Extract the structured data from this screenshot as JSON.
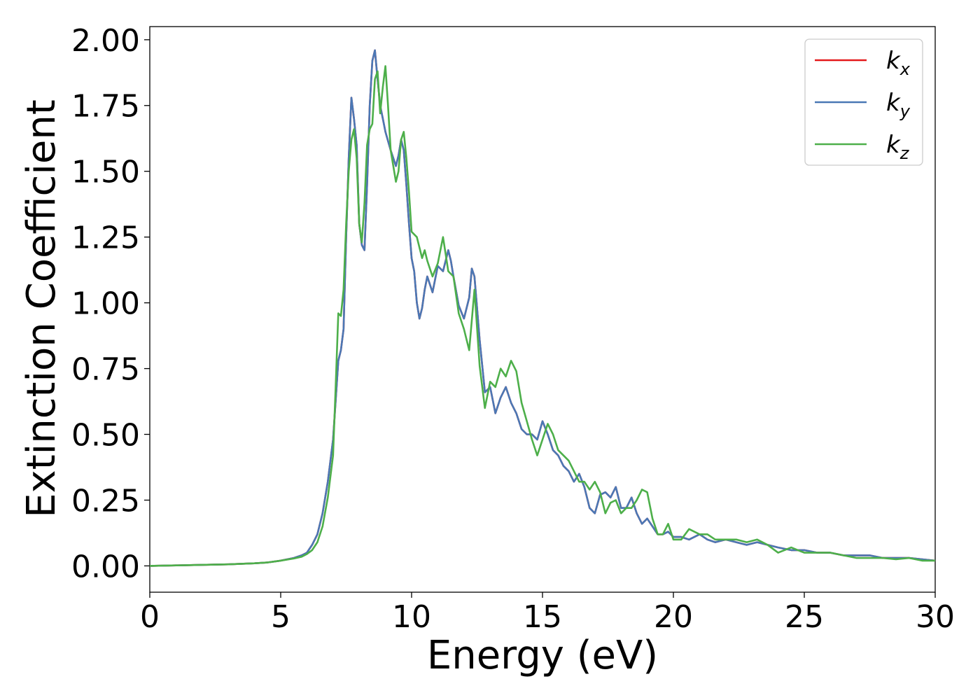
{
  "chart_data": {
    "type": "line",
    "title": "",
    "xlabel": "Energy (eV)",
    "ylabel": "Extinction Coefficient",
    "xlim": [
      0,
      30
    ],
    "ylim": [
      -0.1,
      2.05
    ],
    "xticks": [
      0,
      5,
      10,
      15,
      20,
      25,
      30
    ],
    "xtick_labels": [
      "0",
      "5",
      "10",
      "15",
      "20",
      "25",
      "30"
    ],
    "yticks": [
      0,
      0.25,
      0.5,
      0.75,
      1.0,
      1.25,
      1.5,
      1.75,
      2.0
    ],
    "ytick_labels": [
      "0.00",
      "0.25",
      "0.50",
      "0.75",
      "1.00",
      "1.25",
      "1.50",
      "1.75",
      "2.00"
    ],
    "grid": false,
    "legend_position": "top-right",
    "series": [
      {
        "name": "k",
        "subscript": "x",
        "color": "#e41a1c",
        "x": [
          0,
          1,
          2,
          3,
          4,
          4.5,
          5,
          5.5,
          5.8,
          6.0,
          6.2,
          6.4,
          6.6,
          6.8,
          7.0,
          7.2,
          7.3,
          7.4,
          7.5,
          7.6,
          7.7,
          7.8,
          7.9,
          8.0,
          8.1,
          8.2,
          8.3,
          8.4,
          8.5,
          8.6,
          8.7,
          8.8,
          8.9,
          9.0,
          9.2,
          9.4,
          9.5,
          9.6,
          9.7,
          9.8,
          9.9,
          10.0,
          10.1,
          10.2,
          10.3,
          10.4,
          10.5,
          10.6,
          10.8,
          11.0,
          11.2,
          11.4,
          11.5,
          11.6,
          11.8,
          12.0,
          12.2,
          12.3,
          12.4,
          12.6,
          12.8,
          13.0,
          13.2,
          13.4,
          13.6,
          13.8,
          14.0,
          14.2,
          14.4,
          14.6,
          14.8,
          15.0,
          15.2,
          15.4,
          15.6,
          15.8,
          16.0,
          16.2,
          16.4,
          16.6,
          16.8,
          17.0,
          17.2,
          17.4,
          17.6,
          17.8,
          18.0,
          18.2,
          18.4,
          18.6,
          18.8,
          19.0,
          19.2,
          19.4,
          19.6,
          19.8,
          20.0,
          20.3,
          20.6,
          21.0,
          21.3,
          21.6,
          22.0,
          22.4,
          22.8,
          23.2,
          23.6,
          24.0,
          24.5,
          25.0,
          25.5,
          26.0,
          26.5,
          27.0,
          27.5,
          28.0,
          28.5,
          29.0,
          29.5,
          30.0
        ],
        "values": [
          0.0,
          0.002,
          0.004,
          0.006,
          0.01,
          0.013,
          0.02,
          0.03,
          0.04,
          0.05,
          0.08,
          0.12,
          0.2,
          0.32,
          0.48,
          0.78,
          0.82,
          0.9,
          1.25,
          1.55,
          1.78,
          1.7,
          1.6,
          1.3,
          1.22,
          1.2,
          1.45,
          1.75,
          1.92,
          1.96,
          1.85,
          1.75,
          1.7,
          1.65,
          1.58,
          1.52,
          1.56,
          1.62,
          1.58,
          1.45,
          1.3,
          1.17,
          1.12,
          1.0,
          0.94,
          0.98,
          1.05,
          1.1,
          1.04,
          1.14,
          1.12,
          1.2,
          1.16,
          1.1,
          0.99,
          0.94,
          1.02,
          1.13,
          1.1,
          0.86,
          0.66,
          0.68,
          0.58,
          0.64,
          0.68,
          0.62,
          0.58,
          0.52,
          0.5,
          0.5,
          0.48,
          0.55,
          0.5,
          0.44,
          0.42,
          0.38,
          0.36,
          0.32,
          0.35,
          0.3,
          0.22,
          0.2,
          0.27,
          0.28,
          0.26,
          0.3,
          0.22,
          0.22,
          0.26,
          0.2,
          0.16,
          0.18,
          0.15,
          0.12,
          0.12,
          0.13,
          0.11,
          0.11,
          0.1,
          0.12,
          0.1,
          0.09,
          0.1,
          0.09,
          0.08,
          0.09,
          0.08,
          0.07,
          0.06,
          0.06,
          0.05,
          0.05,
          0.04,
          0.04,
          0.04,
          0.03,
          0.03,
          0.03,
          0.025,
          0.02
        ]
      },
      {
        "name": "k",
        "subscript": "y",
        "color": "#4a78b5",
        "x": [
          0,
          1,
          2,
          3,
          4,
          4.5,
          5,
          5.5,
          5.8,
          6.0,
          6.2,
          6.4,
          6.6,
          6.8,
          7.0,
          7.2,
          7.3,
          7.4,
          7.5,
          7.6,
          7.7,
          7.8,
          7.9,
          8.0,
          8.1,
          8.2,
          8.3,
          8.4,
          8.5,
          8.6,
          8.7,
          8.8,
          8.9,
          9.0,
          9.2,
          9.4,
          9.5,
          9.6,
          9.7,
          9.8,
          9.9,
          10.0,
          10.1,
          10.2,
          10.3,
          10.4,
          10.5,
          10.6,
          10.8,
          11.0,
          11.2,
          11.4,
          11.5,
          11.6,
          11.8,
          12.0,
          12.2,
          12.3,
          12.4,
          12.6,
          12.8,
          13.0,
          13.2,
          13.4,
          13.6,
          13.8,
          14.0,
          14.2,
          14.4,
          14.6,
          14.8,
          15.0,
          15.2,
          15.4,
          15.6,
          15.8,
          16.0,
          16.2,
          16.4,
          16.6,
          16.8,
          17.0,
          17.2,
          17.4,
          17.6,
          17.8,
          18.0,
          18.2,
          18.4,
          18.6,
          18.8,
          19.0,
          19.2,
          19.4,
          19.6,
          19.8,
          20.0,
          20.3,
          20.6,
          21.0,
          21.3,
          21.6,
          22.0,
          22.4,
          22.8,
          23.2,
          23.6,
          24.0,
          24.5,
          25.0,
          25.5,
          26.0,
          26.5,
          27.0,
          27.5,
          28.0,
          28.5,
          29.0,
          29.5,
          30.0
        ],
        "values": [
          0.0,
          0.002,
          0.004,
          0.006,
          0.01,
          0.013,
          0.02,
          0.03,
          0.04,
          0.05,
          0.08,
          0.12,
          0.2,
          0.32,
          0.48,
          0.78,
          0.82,
          0.9,
          1.25,
          1.55,
          1.78,
          1.7,
          1.6,
          1.3,
          1.22,
          1.2,
          1.45,
          1.75,
          1.92,
          1.96,
          1.85,
          1.75,
          1.7,
          1.65,
          1.58,
          1.52,
          1.56,
          1.62,
          1.58,
          1.45,
          1.3,
          1.17,
          1.12,
          1.0,
          0.94,
          0.98,
          1.05,
          1.1,
          1.04,
          1.14,
          1.12,
          1.2,
          1.16,
          1.1,
          0.99,
          0.94,
          1.02,
          1.13,
          1.1,
          0.86,
          0.66,
          0.68,
          0.58,
          0.64,
          0.68,
          0.62,
          0.58,
          0.52,
          0.5,
          0.5,
          0.48,
          0.55,
          0.5,
          0.44,
          0.42,
          0.38,
          0.36,
          0.32,
          0.35,
          0.3,
          0.22,
          0.2,
          0.27,
          0.28,
          0.26,
          0.3,
          0.22,
          0.22,
          0.26,
          0.2,
          0.16,
          0.18,
          0.15,
          0.12,
          0.12,
          0.13,
          0.11,
          0.11,
          0.1,
          0.12,
          0.1,
          0.09,
          0.1,
          0.09,
          0.08,
          0.09,
          0.08,
          0.07,
          0.06,
          0.06,
          0.05,
          0.05,
          0.04,
          0.04,
          0.04,
          0.03,
          0.03,
          0.03,
          0.025,
          0.02
        ]
      },
      {
        "name": "k",
        "subscript": "z",
        "color": "#4daf4a",
        "x": [
          0,
          1,
          2,
          3,
          4,
          4.5,
          5,
          5.5,
          5.8,
          6.0,
          6.2,
          6.4,
          6.6,
          6.8,
          7.0,
          7.1,
          7.2,
          7.3,
          7.4,
          7.5,
          7.6,
          7.7,
          7.8,
          7.9,
          8.0,
          8.1,
          8.2,
          8.3,
          8.4,
          8.5,
          8.6,
          8.7,
          8.8,
          8.9,
          9.0,
          9.1,
          9.2,
          9.4,
          9.5,
          9.6,
          9.7,
          9.8,
          9.9,
          10.0,
          10.2,
          10.4,
          10.5,
          10.6,
          10.8,
          11.0,
          11.2,
          11.4,
          11.6,
          11.8,
          12.0,
          12.2,
          12.4,
          12.6,
          12.8,
          13.0,
          13.2,
          13.4,
          13.6,
          13.8,
          14.0,
          14.2,
          14.4,
          14.6,
          14.8,
          15.0,
          15.2,
          15.4,
          15.6,
          15.8,
          16.0,
          16.2,
          16.4,
          16.6,
          16.8,
          17.0,
          17.2,
          17.4,
          17.6,
          17.8,
          18.0,
          18.2,
          18.4,
          18.6,
          18.8,
          19.0,
          19.2,
          19.4,
          19.6,
          19.8,
          20.0,
          20.3,
          20.6,
          21.0,
          21.3,
          21.6,
          22.0,
          22.4,
          22.8,
          23.2,
          23.6,
          24.0,
          24.5,
          25.0,
          25.5,
          26.0,
          26.5,
          27.0,
          27.5,
          28.0,
          28.5,
          29.0,
          29.5,
          30.0
        ],
        "values": [
          0.0,
          0.002,
          0.004,
          0.006,
          0.01,
          0.013,
          0.02,
          0.028,
          0.035,
          0.045,
          0.06,
          0.09,
          0.15,
          0.26,
          0.42,
          0.68,
          0.96,
          0.95,
          1.05,
          1.3,
          1.5,
          1.62,
          1.66,
          1.55,
          1.3,
          1.23,
          1.38,
          1.6,
          1.66,
          1.68,
          1.85,
          1.88,
          1.72,
          1.82,
          1.9,
          1.75,
          1.58,
          1.46,
          1.5,
          1.62,
          1.65,
          1.55,
          1.42,
          1.27,
          1.25,
          1.17,
          1.2,
          1.16,
          1.1,
          1.15,
          1.25,
          1.12,
          1.1,
          0.96,
          0.9,
          0.82,
          1.05,
          0.76,
          0.6,
          0.7,
          0.68,
          0.75,
          0.72,
          0.78,
          0.74,
          0.62,
          0.55,
          0.48,
          0.42,
          0.48,
          0.54,
          0.5,
          0.44,
          0.42,
          0.4,
          0.36,
          0.32,
          0.32,
          0.29,
          0.32,
          0.28,
          0.2,
          0.24,
          0.25,
          0.2,
          0.22,
          0.22,
          0.25,
          0.29,
          0.28,
          0.18,
          0.12,
          0.12,
          0.16,
          0.1,
          0.1,
          0.14,
          0.12,
          0.12,
          0.1,
          0.1,
          0.1,
          0.09,
          0.1,
          0.08,
          0.05,
          0.07,
          0.05,
          0.05,
          0.05,
          0.04,
          0.03,
          0.03,
          0.03,
          0.025,
          0.03,
          0.02,
          0.02
        ]
      }
    ]
  }
}
